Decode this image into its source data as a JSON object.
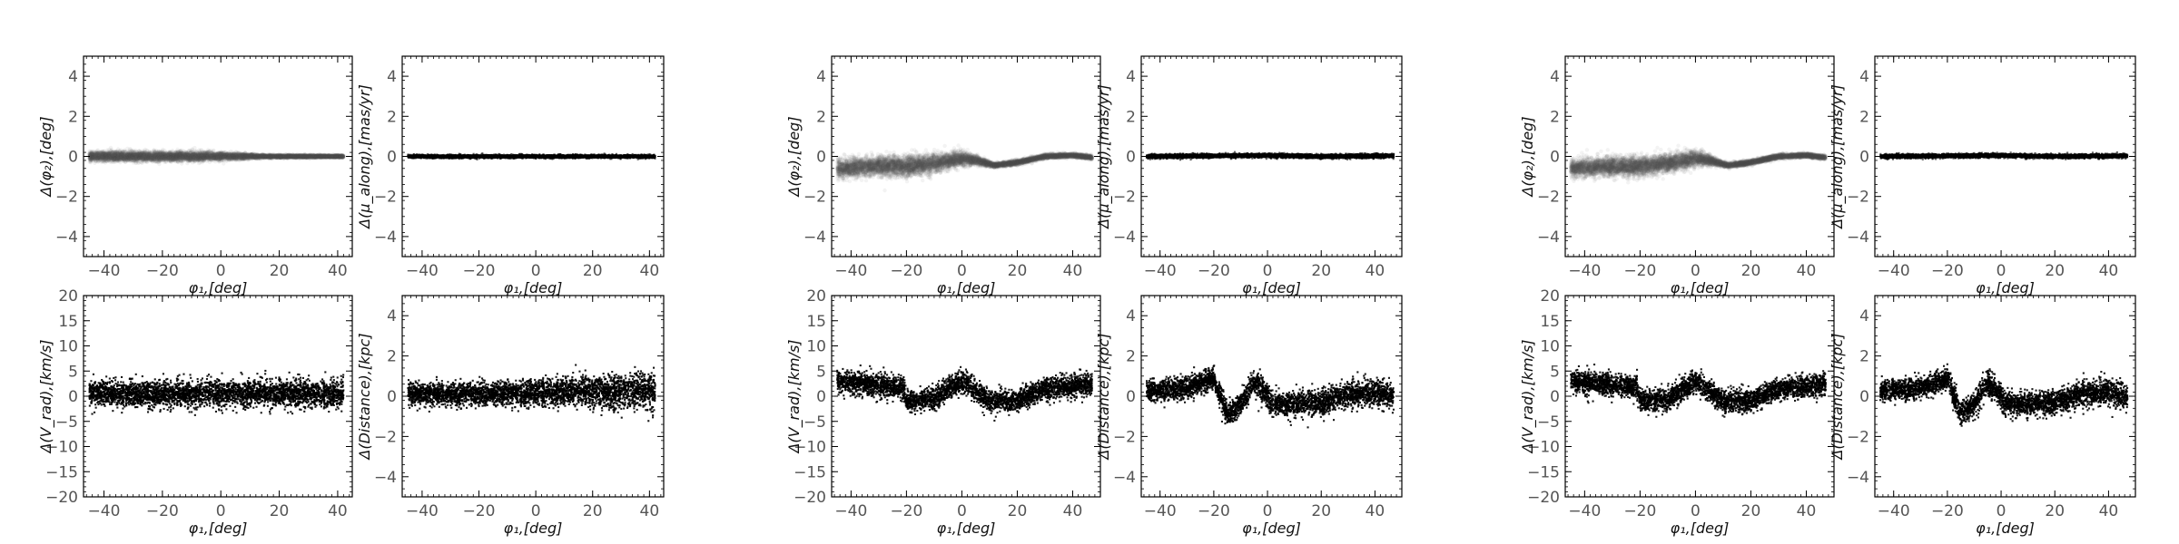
{
  "chart_data": [
    {
      "id": "g1-phi2",
      "type": "scatter",
      "title": "",
      "xlabel": "φ₁,[deg]",
      "ylabel": "Δ(φ₂),[deg]",
      "xlim": [
        -47,
        45
      ],
      "ylim": [
        -5,
        5
      ],
      "xticks": [
        -40,
        -20,
        0,
        20,
        40
      ],
      "yticks": [
        -4,
        -2,
        0,
        2,
        4
      ],
      "marker_color": "#555555",
      "marker_alpha": 0.07,
      "grid": false,
      "legend": "none",
      "x_range": [
        -45,
        42
      ],
      "n_points": 9000,
      "curve": {
        "x": [
          -45,
          -20,
          0,
          15,
          25,
          42
        ],
        "y": [
          0,
          0,
          0,
          0,
          0,
          0
        ]
      },
      "scatter_sigma": {
        "x": [
          -45,
          -20,
          0,
          15,
          42
        ],
        "sd": [
          0.12,
          0.12,
          0.1,
          0.04,
          0.03
        ]
      }
    },
    {
      "id": "g1-pmalong",
      "type": "scatter",
      "title": "",
      "xlabel": "φ₁,[deg]",
      "ylabel": "Δ(μ_along),[mas/yr]",
      "xlim": [
        -47,
        45
      ],
      "ylim": [
        -5,
        5
      ],
      "xticks": [
        -40,
        -20,
        0,
        20,
        40
      ],
      "yticks": [
        -4,
        -2,
        0,
        2,
        4
      ],
      "marker_color": "#000000",
      "marker_alpha": 0.6,
      "grid": false,
      "legend": "none",
      "x_range": [
        -45,
        42
      ],
      "n_points": 5000,
      "curve": {
        "x": [
          -45,
          42
        ],
        "y": [
          0,
          0
        ]
      },
      "scatter_sigma": {
        "x": [
          -45,
          42
        ],
        "sd": [
          0.04,
          0.04
        ]
      }
    },
    {
      "id": "g1-vrad",
      "type": "scatter",
      "title": "",
      "xlabel": "φ₁,[deg]",
      "ylabel": "Δ(V_rad),[km/s]",
      "xlim": [
        -47,
        45
      ],
      "ylim": [
        -20,
        20
      ],
      "xticks": [
        -40,
        -20,
        0,
        20,
        40
      ],
      "yticks": [
        -20,
        -15,
        -10,
        -5,
        0,
        5,
        10,
        15,
        20
      ],
      "marker_color": "#000000",
      "marker_alpha": 0.9,
      "grid": false,
      "legend": "none",
      "x_range": [
        -45,
        42
      ],
      "n_points": 3500,
      "curve": {
        "x": [
          -45,
          42
        ],
        "y": [
          0.5,
          0.5
        ]
      },
      "scatter_sigma": {
        "x": [
          -45,
          42
        ],
        "sd": [
          1.3,
          1.3
        ]
      }
    },
    {
      "id": "g1-dist",
      "type": "scatter",
      "title": "",
      "xlabel": "φ₁,[deg]",
      "ylabel": "Δ(Distance),[kpc]",
      "xlim": [
        -47,
        45
      ],
      "ylim": [
        -5,
        5
      ],
      "xticks": [
        -40,
        -20,
        0,
        20,
        40
      ],
      "yticks": [
        -4,
        -2,
        0,
        2,
        4
      ],
      "marker_color": "#000000",
      "marker_alpha": 0.9,
      "grid": false,
      "legend": "none",
      "x_range": [
        -45,
        42
      ],
      "n_points": 3500,
      "curve": {
        "x": [
          -45,
          0,
          20,
          42
        ],
        "y": [
          0.1,
          0.15,
          0.25,
          0.25
        ]
      },
      "scatter_sigma": {
        "x": [
          -45,
          0,
          20,
          42
        ],
        "sd": [
          0.25,
          0.32,
          0.4,
          0.45
        ]
      }
    },
    {
      "id": "g2-phi2",
      "type": "scatter",
      "title": "",
      "xlabel": "φ₁,[deg]",
      "ylabel": "Δ(φ₂),[deg]",
      "xlim": [
        -47,
        50
      ],
      "ylim": [
        -5,
        5
      ],
      "xticks": [
        -40,
        -20,
        0,
        20,
        40
      ],
      "yticks": [
        -4,
        -2,
        0,
        2,
        4
      ],
      "marker_color": "#555555",
      "marker_alpha": 0.07,
      "grid": false,
      "legend": "none",
      "x_range": [
        -45,
        47
      ],
      "n_points": 9000,
      "curve": {
        "x": [
          -45,
          -30,
          -20,
          -10,
          0,
          5,
          12,
          20,
          30,
          40,
          47
        ],
        "y": [
          -0.6,
          -0.5,
          -0.5,
          -0.35,
          -0.1,
          -0.2,
          -0.45,
          -0.3,
          0,
          0.05,
          -0.05
        ]
      },
      "scatter_sigma": {
        "x": [
          -45,
          -20,
          0,
          10,
          47
        ],
        "sd": [
          0.22,
          0.25,
          0.2,
          0.06,
          0.05
        ]
      }
    },
    {
      "id": "g2-pmalong",
      "type": "scatter",
      "title": "",
      "xlabel": "φ₁,[deg]",
      "ylabel": "Δ(μ_along),[mas/yr]",
      "xlim": [
        -47,
        50
      ],
      "ylim": [
        -5,
        5
      ],
      "xticks": [
        -40,
        -20,
        0,
        20,
        40
      ],
      "yticks": [
        -4,
        -2,
        0,
        2,
        4
      ],
      "marker_color": "#000000",
      "marker_alpha": 0.6,
      "grid": false,
      "legend": "none",
      "x_range": [
        -45,
        47
      ],
      "n_points": 5000,
      "curve": {
        "x": [
          -45,
          0,
          20,
          47
        ],
        "y": [
          0,
          0.05,
          0,
          0.03
        ]
      },
      "scatter_sigma": {
        "x": [
          -45,
          47
        ],
        "sd": [
          0.05,
          0.05
        ]
      }
    },
    {
      "id": "g2-vrad",
      "type": "scatter",
      "title": "",
      "xlabel": "φ₁,[deg]",
      "ylabel": "Δ(V_rad),[km/s]",
      "xlim": [
        -47,
        50
      ],
      "ylim": [
        -20,
        20
      ],
      "xticks": [
        -40,
        -20,
        0,
        20,
        40
      ],
      "yticks": [
        -20,
        -15,
        -10,
        -5,
        0,
        5,
        10,
        15,
        20
      ],
      "marker_color": "#000000",
      "marker_alpha": 0.9,
      "grid": false,
      "legend": "none",
      "x_range": [
        -45,
        47
      ],
      "n_points": 3500,
      "curve": {
        "x": [
          -45,
          -35,
          -21,
          -20,
          -10,
          0,
          5,
          10,
          20,
          30,
          40,
          47
        ],
        "y": [
          3,
          2.5,
          1.8,
          -1,
          -0.5,
          3,
          1,
          -1,
          -1,
          1.5,
          2,
          2.5
        ]
      },
      "scatter_sigma": {
        "x": [
          -45,
          47
        ],
        "sd": [
          1.1,
          1.1
        ]
      }
    },
    {
      "id": "g2-dist",
      "type": "scatter",
      "title": "",
      "xlabel": "φ₁,[deg]",
      "ylabel": "Δ(Distance),[kpc]",
      "xlim": [
        -47,
        50
      ],
      "ylim": [
        -5,
        5
      ],
      "xticks": [
        -40,
        -20,
        0,
        20,
        40
      ],
      "yticks": [
        -4,
        -2,
        0,
        2,
        4
      ],
      "marker_color": "#000000",
      "marker_alpha": 0.9,
      "grid": false,
      "legend": "none",
      "x_range": [
        -45,
        47
      ],
      "n_points": 3500,
      "curve": {
        "x": [
          -45,
          -30,
          -20,
          -15,
          -10,
          -5,
          0,
          1,
          10,
          20,
          30,
          40,
          47
        ],
        "y": [
          0.3,
          0.4,
          0.9,
          -0.9,
          -0.4,
          0.7,
          0.1,
          -0.3,
          -0.4,
          -0.3,
          0.1,
          0.2,
          0
        ]
      },
      "scatter_sigma": {
        "x": [
          -45,
          0,
          47
        ],
        "sd": [
          0.25,
          0.3,
          0.32
        ]
      }
    },
    {
      "id": "g3-phi2",
      "type": "scatter",
      "title": "",
      "xlabel": "φ₁,[deg]",
      "ylabel": "Δ(φ₂),[deg]",
      "xlim": [
        -47,
        50
      ],
      "ylim": [
        -5,
        5
      ],
      "xticks": [
        -40,
        -20,
        0,
        20,
        40
      ],
      "yticks": [
        -4,
        -2,
        0,
        2,
        4
      ],
      "marker_color": "#555555",
      "marker_alpha": 0.07,
      "grid": false,
      "legend": "none",
      "x_range": [
        -45,
        47
      ],
      "n_points": 9000,
      "curve": {
        "x": [
          -45,
          -30,
          -20,
          -10,
          0,
          5,
          12,
          20,
          30,
          40,
          47
        ],
        "y": [
          -0.6,
          -0.5,
          -0.5,
          -0.35,
          -0.1,
          -0.2,
          -0.45,
          -0.3,
          0,
          0.05,
          -0.05
        ]
      },
      "scatter_sigma": {
        "x": [
          -45,
          -20,
          0,
          10,
          47
        ],
        "sd": [
          0.22,
          0.25,
          0.2,
          0.06,
          0.05
        ]
      }
    },
    {
      "id": "g3-pmalong",
      "type": "scatter",
      "title": "",
      "xlabel": "φ₁,[deg]",
      "ylabel": "Δ(μ_along),[mas/yr]",
      "xlim": [
        -47,
        50
      ],
      "ylim": [
        -5,
        5
      ],
      "xticks": [
        -40,
        -20,
        0,
        20,
        40
      ],
      "yticks": [
        -4,
        -2,
        0,
        2,
        4
      ],
      "marker_color": "#000000",
      "marker_alpha": 0.6,
      "grid": false,
      "legend": "none",
      "x_range": [
        -45,
        47
      ],
      "n_points": 5000,
      "curve": {
        "x": [
          -45,
          0,
          20,
          47
        ],
        "y": [
          0,
          0.05,
          0,
          0.03
        ]
      },
      "scatter_sigma": {
        "x": [
          -45,
          47
        ],
        "sd": [
          0.05,
          0.05
        ]
      }
    },
    {
      "id": "g3-vrad",
      "type": "scatter",
      "title": "",
      "xlabel": "φ₁,[deg]",
      "ylabel": "Δ(V_rad),[km/s]",
      "xlim": [
        -47,
        50
      ],
      "ylim": [
        -20,
        20
      ],
      "xticks": [
        -40,
        -20,
        0,
        20,
        40
      ],
      "yticks": [
        -20,
        -15,
        -10,
        -5,
        0,
        5,
        10,
        15,
        20
      ],
      "marker_color": "#000000",
      "marker_alpha": 0.9,
      "grid": false,
      "legend": "none",
      "x_range": [
        -45,
        47
      ],
      "n_points": 3500,
      "curve": {
        "x": [
          -45,
          -35,
          -21,
          -20,
          -10,
          0,
          5,
          10,
          20,
          30,
          40,
          47
        ],
        "y": [
          3,
          2.5,
          1.8,
          -1,
          -0.5,
          3,
          1,
          -1,
          -1,
          1.5,
          2,
          2.5
        ]
      },
      "scatter_sigma": {
        "x": [
          -45,
          47
        ],
        "sd": [
          1.1,
          1.1
        ]
      }
    },
    {
      "id": "g3-dist",
      "type": "scatter",
      "title": "",
      "xlabel": "φ₁,[deg]",
      "ylabel": "Δ(Distance),[kpc]",
      "xlim": [
        -47,
        50
      ],
      "ylim": [
        -5,
        5
      ],
      "xticks": [
        -40,
        -20,
        0,
        20,
        40
      ],
      "yticks": [
        -4,
        -2,
        0,
        2,
        4
      ],
      "marker_color": "#000000",
      "marker_alpha": 0.9,
      "grid": false,
      "legend": "none",
      "x_range": [
        -45,
        47
      ],
      "n_points": 3500,
      "curve": {
        "x": [
          -45,
          -30,
          -20,
          -15,
          -10,
          -5,
          0,
          1,
          10,
          20,
          30,
          40,
          47
        ],
        "y": [
          0.3,
          0.4,
          0.9,
          -0.9,
          -0.4,
          0.7,
          0.1,
          -0.3,
          -0.4,
          -0.3,
          0.1,
          0.2,
          0
        ]
      },
      "scatter_sigma": {
        "x": [
          -45,
          0,
          47
        ],
        "sd": [
          0.25,
          0.3,
          0.32
        ]
      }
    }
  ]
}
